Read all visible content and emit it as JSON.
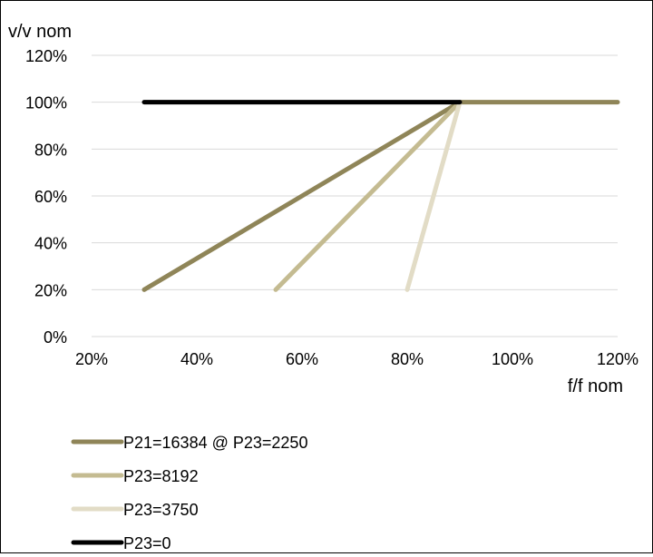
{
  "chart_data": {
    "type": "line",
    "ylabel": "v/v nom",
    "xlabel": "f/f nom",
    "xlim": [
      20,
      120
    ],
    "ylim": [
      0,
      120
    ],
    "x_ticks": [
      "20%",
      "40%",
      "60%",
      "80%",
      "100%",
      "120%"
    ],
    "y_ticks": [
      "0%",
      "20%",
      "40%",
      "60%",
      "80%",
      "100%",
      "120%"
    ],
    "x_tick_values": [
      20,
      40,
      60,
      80,
      100,
      120
    ],
    "y_tick_values": [
      0,
      20,
      40,
      60,
      80,
      100,
      120
    ],
    "grid": "horizontal",
    "legend_position": "bottom",
    "series": [
      {
        "name": "P21=16384 @ P23=2250",
        "color": "#8f8558",
        "points": [
          [
            30,
            20
          ],
          [
            90,
            100
          ],
          [
            120,
            100
          ]
        ]
      },
      {
        "name": "P23=8192",
        "color": "#c4bb91",
        "points": [
          [
            55,
            20
          ],
          [
            90,
            100
          ]
        ]
      },
      {
        "name": "P23=3750",
        "color": "#e2dcc6",
        "points": [
          [
            80,
            20
          ],
          [
            90,
            100
          ]
        ]
      },
      {
        "name": "P23=0",
        "color": "#000000",
        "points": [
          [
            30,
            100
          ],
          [
            90,
            100
          ]
        ]
      }
    ]
  }
}
